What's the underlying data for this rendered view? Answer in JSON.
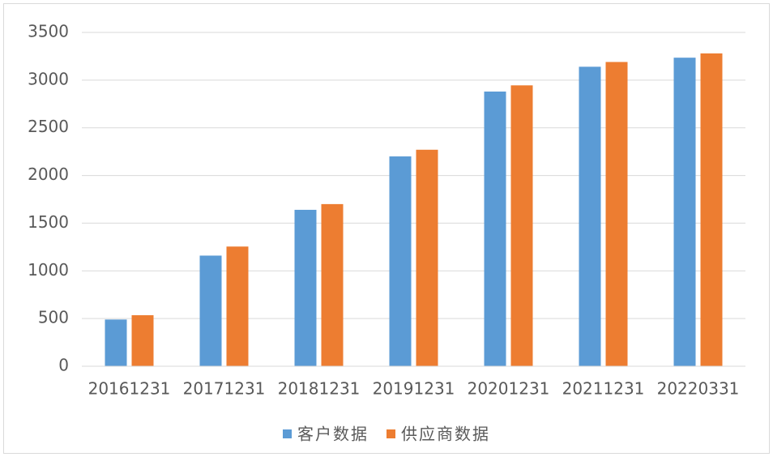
{
  "chart_data": {
    "type": "bar",
    "categories": [
      "20161231",
      "20171231",
      "20181231",
      "20191231",
      "20201231",
      "20211231",
      "20220331"
    ],
    "series": [
      {
        "name": "客户数据",
        "color": "#5b9bd5",
        "values": [
          490,
          1160,
          1640,
          2200,
          2880,
          3140,
          3235
        ]
      },
      {
        "name": "供应商数据",
        "color": "#ed7d31",
        "values": [
          535,
          1255,
          1700,
          2270,
          2945,
          3190,
          3280
        ]
      }
    ],
    "ylim": [
      0,
      3500
    ],
    "yticks": [
      0,
      500,
      1000,
      1500,
      2000,
      2500,
      3000,
      3500
    ],
    "grid": true,
    "legend": "bottom"
  }
}
